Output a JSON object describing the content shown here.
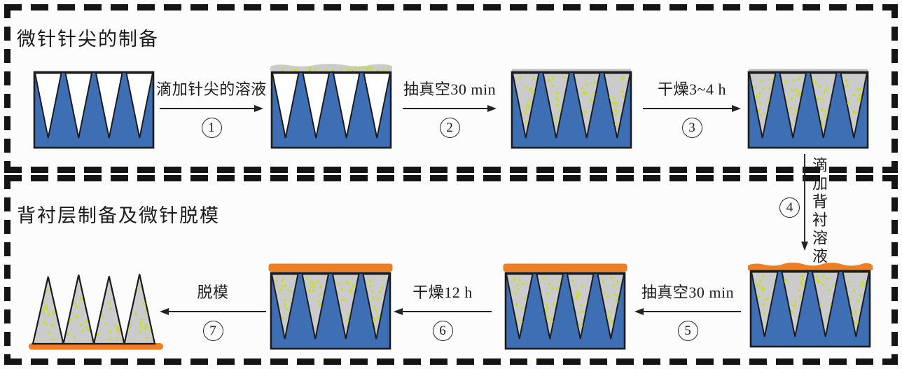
{
  "panels": [
    {
      "title": "微针针尖的制备"
    },
    {
      "title": "背衬层制备及微针脱模"
    }
  ],
  "steps": [
    {
      "number": "1",
      "label": "滴加针尖的溶液"
    },
    {
      "number": "2",
      "label": "抽真空30 min"
    },
    {
      "number": "3",
      "label": "干燥3~4 h"
    },
    {
      "number": "4",
      "label": "滴加背衬溶液"
    },
    {
      "number": "5",
      "label": "抽真空30 min"
    },
    {
      "number": "6",
      "label": "干燥12 h"
    },
    {
      "number": "7",
      "label": "脱模"
    }
  ],
  "colors": {
    "mold_blue": "#3e6fb4",
    "cast_gray": "#cbcbcb",
    "cast_gray_dark": "#c0c0c0",
    "particle_yellow": "#c8dc34",
    "backing_orange": "#ee7f25",
    "outline": "#1c1c1c",
    "border": "#141414"
  }
}
